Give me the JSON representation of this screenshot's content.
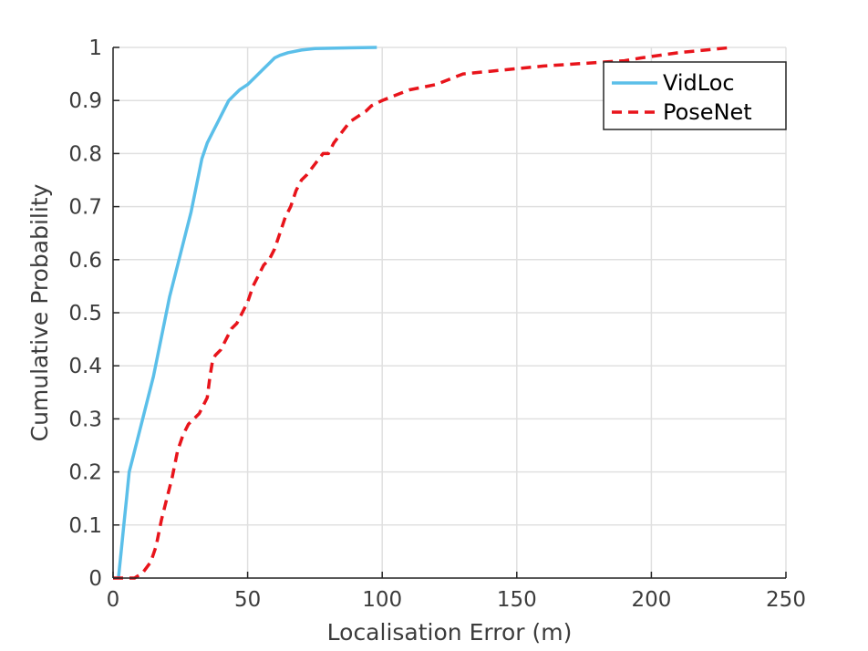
{
  "colors": {
    "vidloc": "#5bbfe9",
    "posenet": "#e8141b",
    "grid": "#e0e0e0",
    "axis": "#262626"
  },
  "chart_data": {
    "type": "line",
    "title": "",
    "xlabel": "Localisation Error (m)",
    "ylabel": "Cumulative Probability",
    "xlim": [
      0,
      250
    ],
    "ylim": [
      0,
      1
    ],
    "xticks": [
      0,
      50,
      100,
      150,
      200,
      250
    ],
    "yticks": [
      0,
      0.1,
      0.2,
      0.3,
      0.4,
      0.5,
      0.6,
      0.7,
      0.8,
      0.9,
      1
    ],
    "grid": true,
    "legend_position": "top-right",
    "series": [
      {
        "name": "VidLoc",
        "style": "solid",
        "x": [
          2,
          3,
          4,
          5,
          6,
          7,
          9,
          11,
          13,
          15,
          17,
          19,
          21,
          23,
          25,
          27,
          29,
          31,
          33,
          35,
          37,
          39,
          41,
          43,
          45,
          47,
          50,
          53,
          56,
          58,
          60,
          62,
          65,
          70,
          75,
          85,
          98
        ],
        "y": [
          0,
          0.05,
          0.1,
          0.15,
          0.2,
          0.22,
          0.26,
          0.3,
          0.34,
          0.38,
          0.43,
          0.48,
          0.53,
          0.57,
          0.61,
          0.65,
          0.69,
          0.74,
          0.79,
          0.82,
          0.84,
          0.86,
          0.88,
          0.9,
          0.91,
          0.92,
          0.93,
          0.945,
          0.96,
          0.97,
          0.98,
          0.985,
          0.99,
          0.995,
          0.998,
          0.999,
          1
        ]
      },
      {
        "name": "PoseNet",
        "style": "dashed",
        "x": [
          0,
          8,
          11,
          14,
          16,
          18,
          20,
          22,
          24,
          26,
          28,
          30,
          32,
          35,
          36,
          37,
          38,
          40,
          42,
          44,
          46,
          48,
          50,
          52,
          54,
          56,
          58,
          60,
          62,
          64,
          66,
          68,
          70,
          72,
          75,
          78,
          80,
          82,
          85,
          88,
          91,
          94,
          96,
          100,
          105,
          110,
          120,
          130,
          140,
          160,
          175,
          190,
          196,
          210,
          230
        ],
        "y": [
          0,
          0,
          0.01,
          0.03,
          0.06,
          0.11,
          0.15,
          0.19,
          0.24,
          0.27,
          0.29,
          0.3,
          0.31,
          0.34,
          0.38,
          0.41,
          0.42,
          0.43,
          0.45,
          0.47,
          0.48,
          0.5,
          0.52,
          0.55,
          0.57,
          0.59,
          0.6,
          0.62,
          0.65,
          0.68,
          0.7,
          0.73,
          0.75,
          0.76,
          0.78,
          0.8,
          0.8,
          0.82,
          0.84,
          0.86,
          0.87,
          0.88,
          0.89,
          0.9,
          0.91,
          0.92,
          0.93,
          0.95,
          0.955,
          0.965,
          0.97,
          0.975,
          0.98,
          0.99,
          1
        ]
      }
    ]
  }
}
